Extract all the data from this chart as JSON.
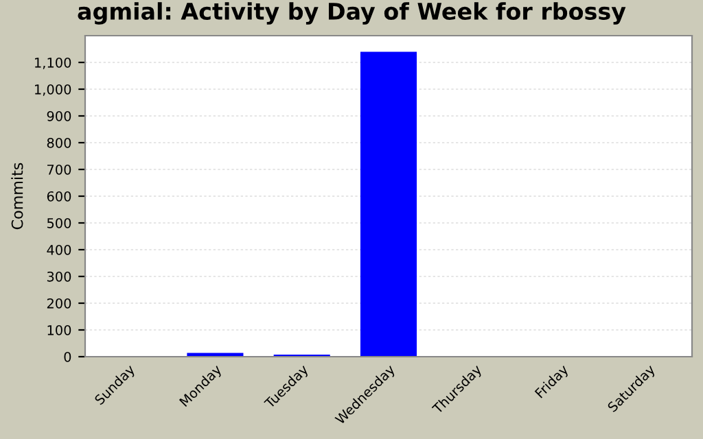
{
  "chart_data": {
    "type": "bar",
    "title": "agmial: Activity by Day of Week for rbossy",
    "ylabel": "Commits",
    "categories": [
      "Sunday",
      "Monday",
      "Tuesday",
      "Wednesday",
      "Thursday",
      "Friday",
      "Saturday"
    ],
    "values": [
      0,
      14,
      8,
      1140,
      0,
      0,
      0
    ],
    "color": "#0000ff",
    "ylim": [
      0,
      1200
    ],
    "yticks": [
      0,
      {
        "value": 100,
        "label": "100"
      },
      {
        "value": 200,
        "label": "200"
      },
      {
        "value": 300,
        "label": "300"
      },
      {
        "value": 400,
        "label": "400"
      },
      {
        "value": 500,
        "label": "500"
      },
      {
        "value": 600,
        "label": "600"
      },
      {
        "value": 700,
        "label": "700"
      },
      {
        "value": 800,
        "label": "800"
      },
      {
        "value": 900,
        "label": "900"
      },
      {
        "value": 1000,
        "label": "1,000"
      },
      {
        "value": 1100,
        "label": "1,100"
      }
    ],
    "grid": "y"
  }
}
